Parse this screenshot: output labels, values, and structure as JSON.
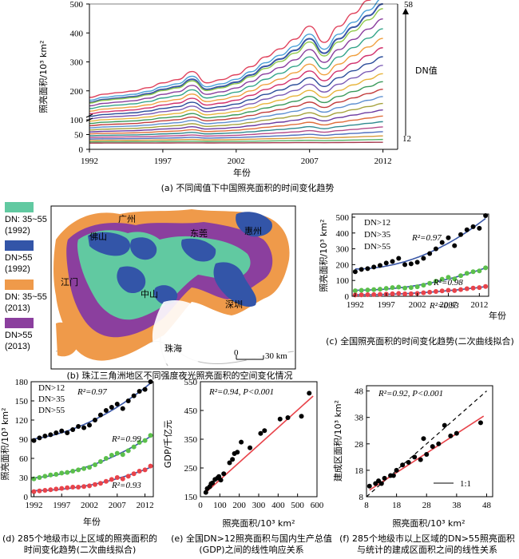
{
  "colors": {
    "blue": "#3a57a6",
    "green": "#5bbf4b",
    "red": "#e8434a",
    "teal": "#61c9a1",
    "navy": "#3355a8",
    "orange": "#ef9a4a",
    "purple": "#8b3f9e",
    "fit_red": "#e8434a",
    "fit_blue": "#3a57a6"
  },
  "panel_a": {
    "caption": "(a) 不同阈值下中国照亮面积的时间变化趋势",
    "ylabel": "照亮面积/10³ km²",
    "xlabel": "年份",
    "dn_top": "58",
    "dn_label": "DN值",
    "dn_bottom": "12"
  },
  "panel_b": {
    "caption": "(b) 珠江三角洲地区不同强度夜光照亮面积的空间变化情况",
    "legend": [
      {
        "label": "DN: 35~55",
        "year": "(1992)",
        "color": "#61c9a1"
      },
      {
        "label": "DN>55",
        "year": "(1992)",
        "color": "#3355a8"
      },
      {
        "label": "DN: 35~55",
        "year": "(2013)",
        "color": "#ef9a4a"
      },
      {
        "label": "DN>55",
        "year": "(2013)",
        "color": "#8b3f9e"
      }
    ],
    "cities": [
      "广州",
      "佛山",
      "东莞",
      "惠州",
      "江门",
      "中山",
      "深圳",
      "珠海"
    ],
    "scale_0": "0",
    "scale_30": "30 km"
  },
  "panel_c": {
    "caption": "(c) 全国照亮面积的时间变化趋势(二次曲线拟合)",
    "ylabel": "照亮面积/10³ km²",
    "xlabel": "年份",
    "legend": [
      "DN>12",
      "DN>35",
      "DN>55"
    ],
    "r2": [
      "R²=0.97",
      "R²=0.98",
      "R²=0.93"
    ]
  },
  "panel_d": {
    "caption": "(d) 285个地级市以上区域的照亮面积的时间变化趋势(二次曲线拟合)",
    "ylabel": "照亮面积/10³ km²",
    "xlabel": "年份",
    "legend": [
      "DN>12",
      "DN>35",
      "DN>55"
    ],
    "r2": [
      "R²=0.97",
      "R²=0.99",
      "R²=0.93"
    ]
  },
  "panel_e": {
    "caption": "(e) 全国DN>12照亮面积与国内生产总值(GDP)之间的线性响应关系",
    "ylabel": "GDP/千亿元",
    "xlabel": "照亮面积/10³ km²",
    "stat": "R²=0.94, P<0.001"
  },
  "panel_f": {
    "caption": "(f) 285个地级市以上区域的DN>55照亮面积与统计的建成区面积之间的线性关系",
    "ylabel": "建成区面积/10³ km²",
    "xlabel": "照亮面积/10³ km²",
    "stat": "R²=0.92, P<0.001",
    "ref_line": "1:1"
  },
  "chart_data": [
    {
      "type": "line",
      "panel": "a",
      "x_ticks": [
        "1992",
        "1997",
        "2002",
        "2007",
        "2012"
      ],
      "xlim": [
        1992,
        2013
      ],
      "ylim": [
        0,
        500
      ],
      "y_ticks": [
        "0",
        "50",
        "100",
        "200",
        "300",
        "400",
        "500"
      ],
      "top_series_values": [
        160,
        170,
        175,
        180,
        190,
        205,
        215,
        240,
        205,
        215,
        230,
        255,
        285,
        310,
        340,
        380,
        330,
        380,
        420,
        460,
        500
      ],
      "series_count": 23,
      "dn_range": [
        12,
        58
      ]
    },
    {
      "type": "scatter",
      "panel": "c",
      "x_ticks": [
        "1992",
        "1997",
        "2002",
        "2007",
        "2012"
      ],
      "y_ticks": [
        "0",
        "100",
        "200",
        "300",
        "400",
        "500"
      ],
      "ylim": [
        0,
        520
      ],
      "x": [
        1992,
        1993,
        1994,
        1995,
        1996,
        1997,
        1998,
        1999,
        2000,
        2001,
        2002,
        2003,
        2004,
        2005,
        2006,
        2007,
        2008,
        2009,
        2010,
        2011,
        2012,
        2013
      ],
      "series": [
        {
          "name": "DN>12",
          "values": [
            155,
            170,
            175,
            185,
            195,
            210,
            220,
            240,
            200,
            205,
            215,
            240,
            270,
            300,
            340,
            370,
            320,
            390,
            420,
            440,
            430,
            510
          ]
        },
        {
          "name": "DN>35",
          "values": [
            35,
            38,
            40,
            42,
            45,
            50,
            55,
            58,
            52,
            55,
            60,
            70,
            82,
            95,
            108,
            120,
            110,
            130,
            145,
            155,
            160,
            180
          ]
        },
        {
          "name": "DN>55",
          "values": [
            8,
            9,
            10,
            11,
            12,
            14,
            16,
            18,
            15,
            16,
            18,
            22,
            26,
            30,
            34,
            38,
            36,
            42,
            48,
            52,
            55,
            62
          ]
        }
      ]
    },
    {
      "type": "scatter",
      "panel": "d",
      "x_ticks": [
        "1992",
        "1997",
        "2002",
        "2007",
        "2012"
      ],
      "y_ticks": [
        "0",
        "30",
        "60",
        "90",
        "120",
        "150",
        "180"
      ],
      "ylim": [
        0,
        180
      ],
      "x": [
        1992,
        1993,
        1994,
        1995,
        1996,
        1997,
        1998,
        1999,
        2000,
        2001,
        2002,
        2003,
        2004,
        2005,
        2006,
        2007,
        2008,
        2009,
        2010,
        2011,
        2012,
        2013
      ],
      "series": [
        {
          "name": "DN>12",
          "values": [
            88,
            92,
            95,
            97,
            100,
            103,
            100,
            105,
            110,
            108,
            112,
            120,
            128,
            135,
            140,
            145,
            138,
            150,
            158,
            165,
            168,
            180
          ]
        },
        {
          "name": "DN>35",
          "values": [
            28,
            30,
            32,
            34,
            35,
            37,
            38,
            40,
            42,
            44,
            46,
            50,
            55,
            60,
            65,
            68,
            66,
            72,
            78,
            85,
            88,
            96
          ]
        },
        {
          "name": "DN>55",
          "values": [
            8,
            9,
            10,
            11,
            12,
            13,
            14,
            15,
            15,
            16,
            17,
            19,
            21,
            24,
            27,
            30,
            28,
            32,
            36,
            40,
            42,
            48
          ]
        }
      ]
    },
    {
      "type": "scatter",
      "panel": "e",
      "x_ticks": [
        "0",
        "100",
        "200",
        "300",
        "400",
        "500",
        "600"
      ],
      "y_ticks": [
        "150",
        "250",
        "350",
        "450",
        "550"
      ],
      "xlim": [
        0,
        600
      ],
      "ylim": [
        150,
        550
      ],
      "x": [
        28,
        35,
        48,
        55,
        62,
        75,
        88,
        95,
        105,
        120,
        150,
        165,
        175,
        190,
        210,
        255,
        310,
        330,
        410,
        450,
        520,
        560
      ],
      "y": [
        165,
        178,
        185,
        195,
        198,
        210,
        215,
        220,
        208,
        230,
        268,
        280,
        300,
        305,
        340,
        320,
        370,
        380,
        420,
        425,
        430,
        510
      ],
      "fit": [
        [
          20,
          160
        ],
        [
          580,
          500
        ]
      ]
    },
    {
      "type": "scatter",
      "panel": "f",
      "x_ticks": [
        "8",
        "18",
        "28",
        "38",
        "48"
      ],
      "y_ticks": [
        "8",
        "18",
        "28",
        "38",
        "48"
      ],
      "xlim": [
        8,
        50
      ],
      "ylim": [
        8,
        50
      ],
      "x": [
        9,
        11,
        12,
        13,
        14,
        16,
        17,
        18,
        20,
        22,
        24,
        26,
        27,
        28,
        30,
        32,
        34,
        36,
        38,
        46
      ],
      "y": [
        12,
        13,
        14,
        13,
        15,
        16,
        16,
        18,
        20,
        21,
        23,
        22,
        30,
        24,
        27,
        28,
        35,
        31,
        32,
        36
      ],
      "fit": [
        [
          9,
          10.5
        ],
        [
          47,
          38.5
        ]
      ],
      "reference": [
        [
          8,
          8
        ],
        [
          48,
          48
        ]
      ]
    }
  ]
}
